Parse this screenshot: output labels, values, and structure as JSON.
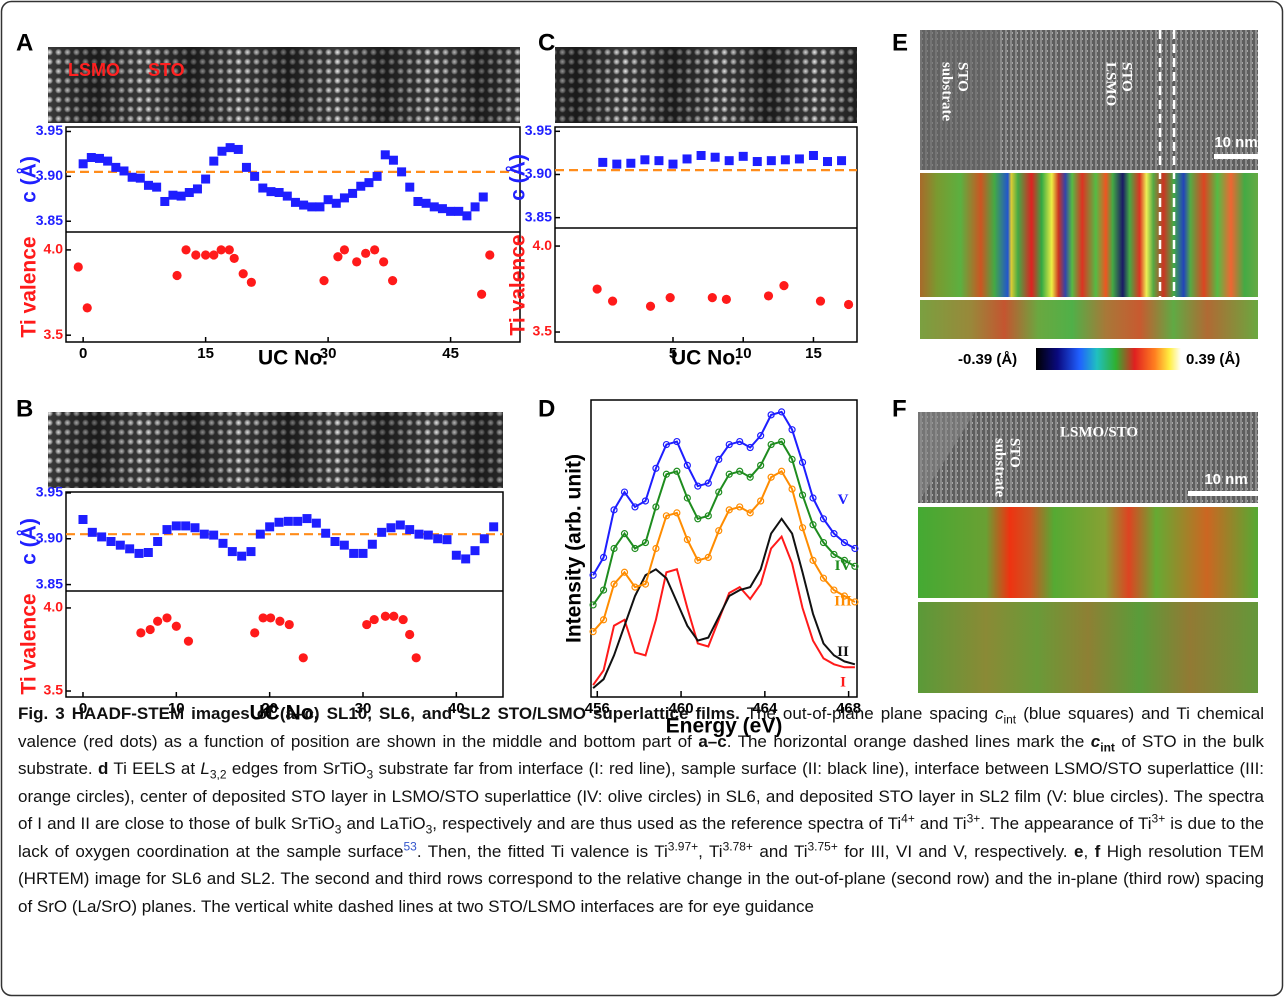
{
  "chart_data": [
    {
      "type": "scatter",
      "label": "A",
      "image_labels": [
        "LSMO",
        "STO"
      ],
      "x_label": "UC No.",
      "xlim": [
        -2.1,
        53.5
      ],
      "xticks": [
        0,
        15,
        30,
        45
      ],
      "subplots": [
        {
          "y_label": "c (Å)",
          "color": "#2020ff",
          "ylim": [
            3.838,
            3.955
          ],
          "yticks": [
            3.95,
            {
              "value": 3.9,
              "label": "3.90"
            },
            3.85
          ],
          "reference_line": 3.905,
          "reference_color": "#ff8c1a",
          "series": [
            {
              "color": "#1e1eff",
              "marker": "square",
              "x": [
                0,
                1,
                2,
                3,
                4,
                5,
                6,
                7,
                8,
                9,
                10,
                11,
                12,
                13,
                14,
                15,
                16,
                17,
                18,
                19,
                20,
                21,
                22,
                23,
                24,
                25,
                26,
                27,
                28,
                29,
                30,
                31,
                32,
                33,
                34,
                35,
                36,
                37,
                38,
                39,
                40,
                41,
                42,
                43,
                44,
                45,
                46,
                47,
                48,
                49
              ],
              "values": [
                3.914,
                3.921,
                3.92,
                3.917,
                3.91,
                3.906,
                3.899,
                3.898,
                3.89,
                3.888,
                3.872,
                3.879,
                3.878,
                3.882,
                3.886,
                3.897,
                3.917,
                3.928,
                3.932,
                3.93,
                3.91,
                3.9,
                3.887,
                3.883,
                3.882,
                3.878,
                3.871,
                3.868,
                3.866,
                3.866,
                3.874,
                3.87,
                3.876,
                3.881,
                3.889,
                3.893,
                3.9,
                3.924,
                3.918,
                3.905,
                3.888,
                3.872,
                3.87,
                3.866,
                3.864,
                3.861,
                3.861,
                3.856,
                3.866,
                3.877
              ]
            }
          ]
        },
        {
          "y_label": "Ti valence",
          "color": "#ff1a1a",
          "ylim": [
            3.46,
            4.105
          ],
          "yticks": [
            {
              "value": 4,
              "label": "4.0"
            },
            3.5
          ],
          "series": [
            {
              "color": "#ff1a1a",
              "marker": "circle",
              "x": [
                -0.6,
                0.5,
                11.5,
                12.6,
                13.8,
                15,
                16,
                16.9,
                17.9,
                18.5,
                19.6,
                20.6,
                29.5,
                31.2,
                32,
                33.5,
                34.6,
                35.7,
                36.8,
                37.9,
                48.8,
                49.8
              ],
              "values": [
                3.9,
                3.66,
                3.85,
                4.0,
                3.97,
                3.97,
                3.97,
                4.0,
                4.0,
                3.95,
                3.86,
                3.81,
                3.82,
                3.96,
                4.0,
                3.93,
                3.98,
                4.0,
                3.93,
                3.82,
                3.74,
                3.97
              ]
            }
          ]
        }
      ]
    },
    {
      "type": "scatter",
      "label": "B",
      "x_label": "UC No.",
      "xlim": [
        -1.82,
        45
      ],
      "xticks": [
        0,
        10,
        20,
        30,
        40
      ],
      "subplots": [
        {
          "y_label": "c (Å)",
          "color": "#2020ff",
          "ylim": [
            3.843,
            3.951
          ],
          "yticks": [
            3.95,
            {
              "value": 3.9,
              "label": "3.90"
            },
            3.85
          ],
          "reference_line": 3.905,
          "reference_color": "#ff8c1a",
          "series": [
            {
              "color": "#1e1eff",
              "marker": "square",
              "x": [
                0,
                1,
                2,
                3,
                4,
                5,
                6,
                7,
                8,
                9,
                10,
                11,
                12,
                13,
                14,
                15,
                16,
                17,
                18,
                19,
                20,
                21,
                22,
                23,
                24,
                25,
                26,
                27,
                28,
                29,
                30,
                31,
                32,
                33,
                34,
                35,
                36,
                37,
                38,
                39,
                40,
                41,
                42,
                43,
                44
              ],
              "values": [
                3.921,
                3.907,
                3.902,
                3.897,
                3.893,
                3.889,
                3.884,
                3.885,
                3.897,
                3.91,
                3.914,
                3.914,
                3.912,
                3.905,
                3.904,
                3.895,
                3.886,
                3.881,
                3.886,
                3.905,
                3.913,
                3.918,
                3.919,
                3.919,
                3.922,
                3.917,
                3.906,
                3.897,
                3.893,
                3.884,
                3.884,
                3.894,
                3.907,
                3.912,
                3.915,
                3.91,
                3.905,
                3.904,
                3.9,
                3.899,
                3.882,
                3.878,
                3.887,
                3.9,
                3.913
              ]
            }
          ]
        },
        {
          "y_label": "Ti valence",
          "color": "#ff1a1a",
          "ylim": [
            3.464,
            4.102
          ],
          "yticks": [
            {
              "value": 4,
              "label": "4.0"
            },
            3.5
          ],
          "series": [
            {
              "color": "#ff1a1a",
              "marker": "circle",
              "x": [
                6.2,
                7.2,
                8,
                9,
                10,
                11.3,
                18.4,
                19.3,
                20.1,
                21.1,
                22.1,
                23.6,
                30.4,
                31.2,
                32.4,
                33.3,
                34.3,
                35,
                35.7
              ],
              "values": [
                3.85,
                3.87,
                3.92,
                3.94,
                3.89,
                3.8,
                3.85,
                3.94,
                3.94,
                3.92,
                3.9,
                3.7,
                3.9,
                3.93,
                3.95,
                3.95,
                3.93,
                3.84,
                3.7
              ]
            }
          ]
        }
      ]
    },
    {
      "type": "scatter",
      "label": "C",
      "x_label": "UC No.",
      "xlim": [
        -3.4,
        18.1
      ],
      "xticks": [
        5,
        10,
        15
      ],
      "subplots": [
        {
          "y_label": "c (Å)",
          "color": "#2020ff",
          "ylim": [
            3.838,
            3.955
          ],
          "yticks": [
            3.95,
            {
              "value": 3.9,
              "label": "3.90"
            },
            3.85
          ],
          "reference_line": 3.905,
          "reference_color": "#ff8c1a",
          "series": [
            {
              "color": "#1e1eff",
              "marker": "square",
              "x": [
                0,
                1,
                2,
                3,
                4,
                5,
                6,
                7,
                8,
                9,
                10,
                11,
                12,
                13,
                14,
                15,
                16,
                17
              ],
              "values": [
                3.914,
                3.912,
                3.913,
                3.917,
                3.916,
                3.912,
                3.918,
                3.922,
                3.92,
                3.916,
                3.921,
                3.915,
                3.916,
                3.917,
                3.918,
                3.922,
                3.915,
                3.916
              ]
            }
          ]
        },
        {
          "y_label": "Ti valence",
          "color": "#ff1a1a",
          "ylim": [
            3.442,
            4.105
          ],
          "yticks": [
            {
              "value": 4,
              "label": "4.0"
            },
            3.5
          ],
          "series": [
            {
              "color": "#ff1a1a",
              "marker": "circle",
              "x": [
                -0.4,
                0.7,
                3.4,
                4.8,
                7.8,
                8.8,
                11.8,
                12.9,
                15.5,
                17.5
              ],
              "values": [
                3.75,
                3.68,
                3.65,
                3.7,
                3.7,
                3.69,
                3.71,
                3.77,
                3.68,
                3.66
              ]
            }
          ]
        }
      ]
    },
    {
      "type": "line",
      "label": "D",
      "x_label": "Energy (eV)",
      "y_label": "Intensity (arb. unit)",
      "xlim": [
        455.7,
        468.4
      ],
      "xticks": [
        456,
        460,
        464,
        468
      ],
      "ylim": [
        0,
        100
      ],
      "x": [
        455.8,
        456.3,
        456.8,
        457.3,
        457.8,
        458.3,
        458.8,
        459.3,
        459.8,
        460.3,
        460.8,
        461.3,
        461.8,
        462.3,
        462.8,
        463.3,
        463.8,
        464.3,
        464.8,
        465.3,
        465.8,
        466.3,
        466.8,
        467.3,
        467.8,
        468.3
      ],
      "series": [
        {
          "name": "I",
          "color": "#ff1a1a",
          "marker": "none",
          "values": [
            4,
            9,
            24,
            26,
            15,
            14,
            26,
            42,
            43,
            30,
            18,
            17,
            26,
            35,
            37,
            33,
            38,
            50,
            54,
            45,
            30,
            19,
            13,
            11,
            10,
            10
          ]
        },
        {
          "name": "II",
          "color": "#111111",
          "marker": "none",
          "values": [
            3,
            6,
            14,
            24,
            34,
            41,
            43,
            40,
            32,
            24,
            19,
            20,
            27,
            34,
            36,
            37,
            43,
            55,
            60,
            55,
            42,
            28,
            18,
            14,
            12,
            11
          ]
        },
        {
          "name": "III",
          "color": "#ff8c00",
          "marker": "circle",
          "values": [
            22,
            26,
            38,
            42,
            37,
            38,
            50,
            61,
            62,
            53,
            46,
            47,
            56,
            63,
            64,
            62,
            66,
            74,
            76,
            70,
            57,
            46,
            40,
            36,
            34,
            32
          ]
        },
        {
          "name": "IV",
          "color": "#1e8c1e",
          "marker": "circle",
          "values": [
            31,
            36,
            50,
            55,
            50,
            52,
            64,
            75,
            76,
            67,
            60,
            61,
            69,
            75,
            76,
            74,
            78,
            85,
            86,
            80,
            68,
            58,
            52,
            48,
            46,
            44
          ]
        },
        {
          "name": "V",
          "color": "#1e1eff",
          "marker": "circle",
          "values": [
            41,
            47,
            63,
            69,
            64,
            66,
            77,
            85,
            86,
            78,
            71,
            72,
            80,
            85,
            86,
            84,
            88,
            95,
            96,
            90,
            79,
            67,
            60,
            55,
            52,
            50
          ]
        }
      ]
    }
  ],
  "images": {
    "E": {
      "label": "E",
      "substrate_label": [
        "STO",
        "substrate"
      ],
      "layer_label": [
        "STO",
        "LSMO"
      ],
      "scale_bar": "10 nm",
      "colorbar_min": "-0.39 (Å)",
      "colorbar_max": "0.39 (Å)"
    },
    "F": {
      "label": "F",
      "substrate_label": [
        "STO",
        "substrate"
      ],
      "film_label": "LSMO/STO",
      "scale_bar": "10 nm"
    }
  },
  "caption": [
    "Fig. 3 HAADF-STEM images of (a–c) SL10, SL6, and SL2 STO/LSMO superlattice films.",
    " The out-of-plane plane spacing ",
    "c",
    "int",
    " (blue squares) and Ti chemical valence (red dots) as a function of position are shown in the middle and bottom part of ",
    "a–c",
    ". The horizontal orange dashed lines mark the ",
    "c",
    "int",
    " of STO in the bulk substrate. ",
    "d",
    " Ti EELS at ",
    "L",
    "3,2",
    " edges from SrTiO",
    "3",
    " substrate far from interface (I: red line), sample surface (II: black line), interface between LSMO/STO superlattice (III: orange circles), center of deposited STO layer in LSMO/STO superlattice (IV: olive circles) in SL6, and deposited STO layer in SL2 film (V: blue circles). The spectra of I and II are close to those of bulk SrTiO",
    "3",
    " and LaTiO",
    "3",
    ", respectively and are thus used as the reference spectra of Ti",
    "4+",
    " and Ti",
    "3+",
    ". The appearance of Ti",
    "3+",
    " is due to the lack of oxygen coordination at the sample surface",
    "53",
    ". Then, the fitted Ti valence is Ti",
    "3.97+",
    ", Ti",
    "3.78+",
    " and Ti",
    "3.75+",
    " for III, VI and V, respectively. ",
    "e",
    ", ",
    "f",
    " High resolution TEM (HRTEM) image for SL6 and SL2. The second and third rows correspond to the relative change in the out-of-plane (second row) and the in-plane (third row) spacing of SrO (La/SrO) planes. The vertical white dashed lines at two STO/LSMO interfaces are for eye guidance"
  ]
}
